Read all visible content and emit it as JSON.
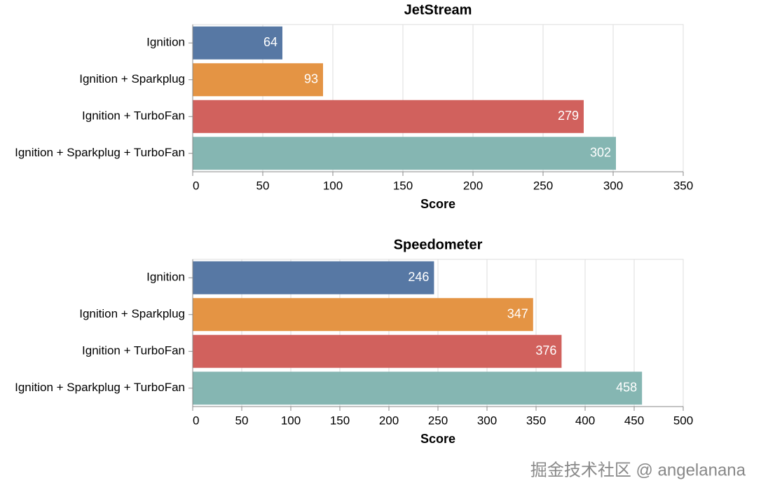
{
  "chart_data": [
    {
      "type": "bar",
      "orientation": "horizontal",
      "title": "JetStream",
      "x_label": "Score",
      "categories": [
        "Ignition",
        "Ignition + Sparkplug",
        "Ignition + TurboFan",
        "Ignition + Sparkplug + TurboFan"
      ],
      "values": [
        64,
        93,
        279,
        302
      ],
      "colors": [
        "#5778a4",
        "#e49444",
        "#d1615d",
        "#85b6b2"
      ],
      "xlim": [
        0,
        350
      ],
      "xticks": [
        0,
        50,
        100,
        150,
        200,
        250,
        300,
        350
      ],
      "grid": true
    },
    {
      "type": "bar",
      "orientation": "horizontal",
      "title": "Speedometer",
      "x_label": "Score",
      "categories": [
        "Ignition",
        "Ignition + Sparkplug",
        "Ignition + TurboFan",
        "Ignition + Sparkplug + TurboFan"
      ],
      "values": [
        246,
        347,
        376,
        458
      ],
      "colors": [
        "#5778a4",
        "#e49444",
        "#d1615d",
        "#85b6b2"
      ],
      "xlim": [
        0,
        500
      ],
      "xticks": [
        0,
        50,
        100,
        150,
        200,
        250,
        300,
        350,
        400,
        450,
        500
      ],
      "grid": true
    }
  ],
  "watermark": "掘金技术社区 @ angelanana"
}
